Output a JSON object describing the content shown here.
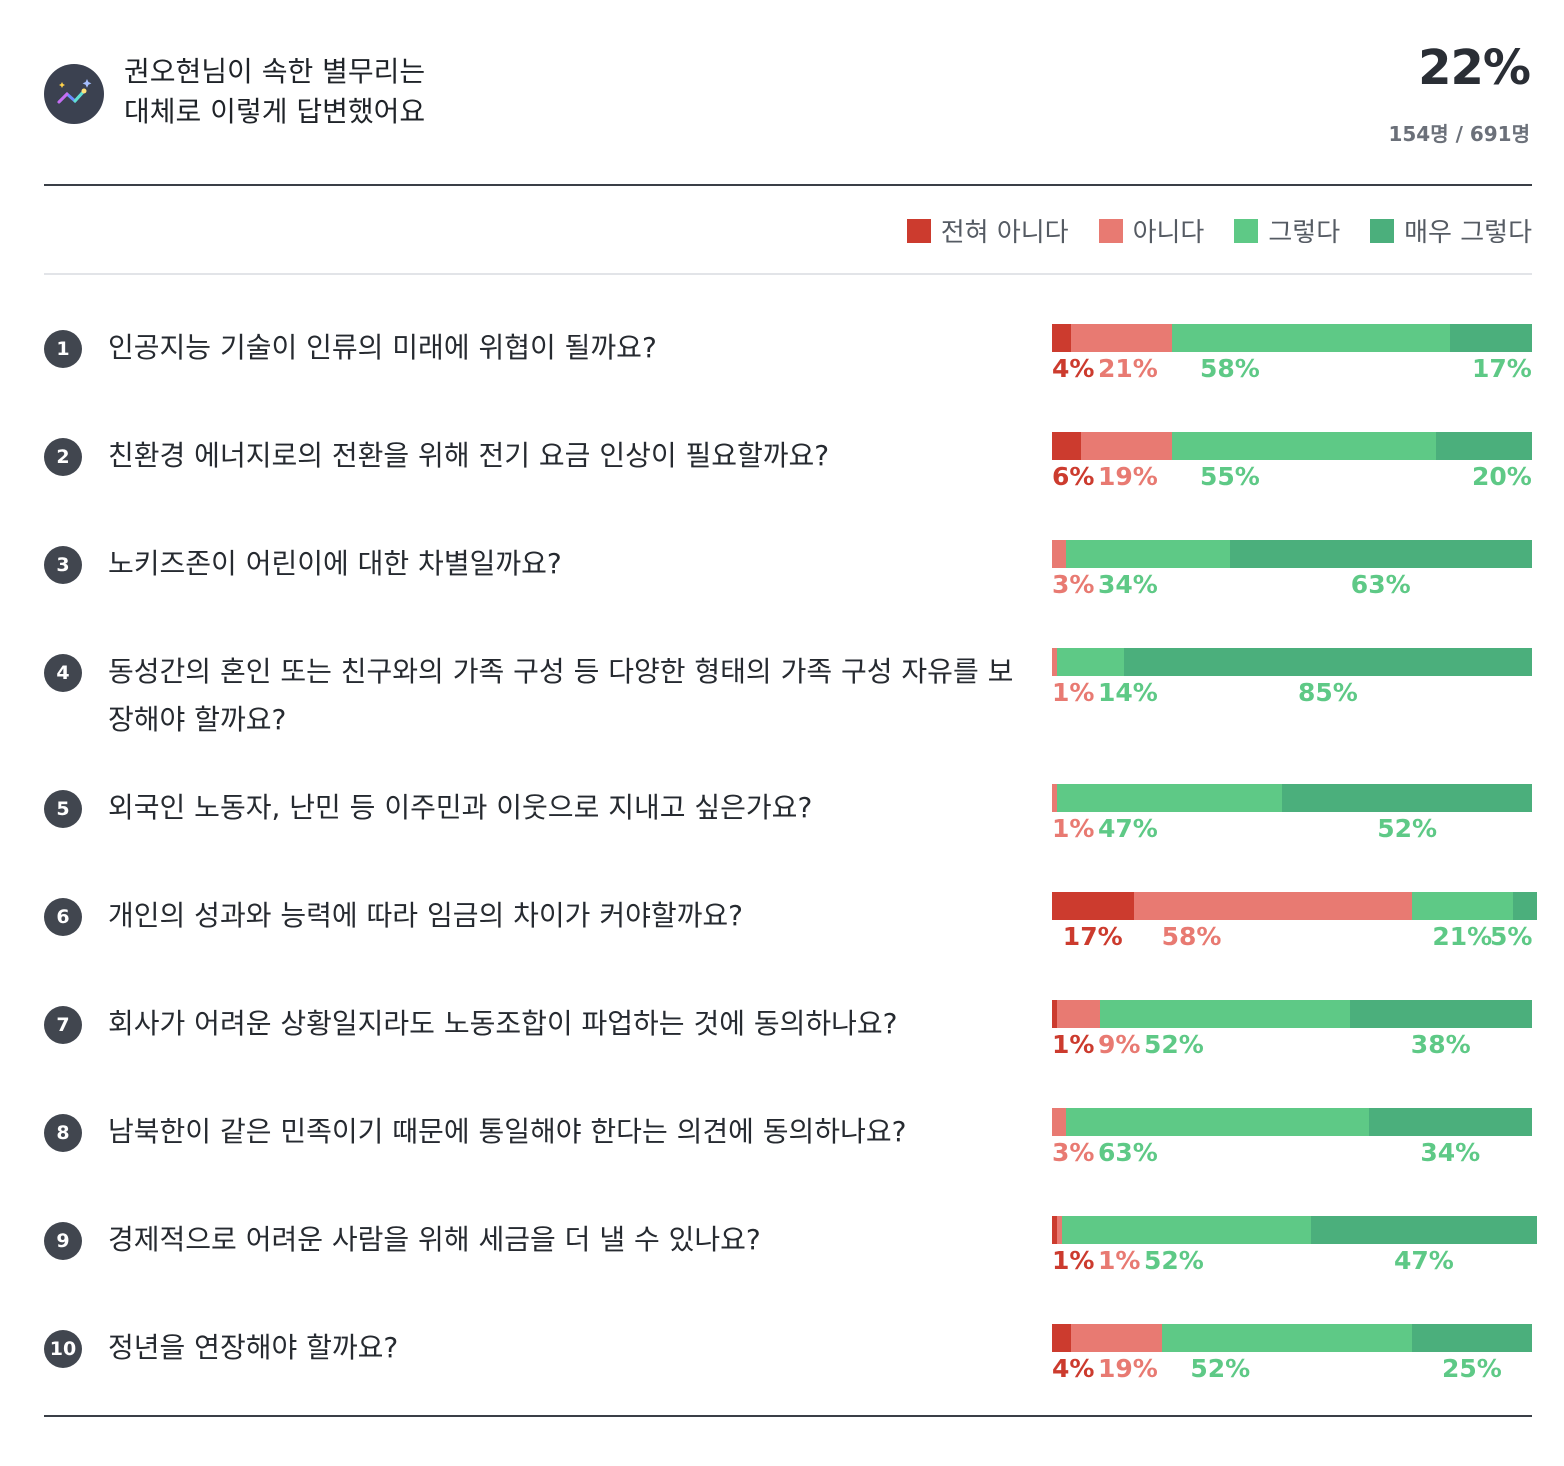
{
  "header": {
    "title_line1": "권오현님이 속한 별무리는",
    "title_line2": "대체로 이렇게 답변했어요",
    "percent": "22%",
    "count": "154명 / 691명"
  },
  "colors": {
    "strongly_disagree": "#cc3b2e",
    "disagree": "#e87a72",
    "agree": "#5ec986",
    "strongly_agree": "#4baf7c"
  },
  "legend": [
    "전혀 아니다",
    "아니다",
    "그렇다",
    "매우 그렇다"
  ],
  "chart_data": {
    "type": "bar",
    "orientation": "horizontal-stacked-100",
    "categories": [
      "1",
      "2",
      "3",
      "4",
      "5",
      "6",
      "7",
      "8",
      "9",
      "10"
    ],
    "series": [
      {
        "name": "전혀 아니다",
        "values": [
          4,
          6,
          0,
          0,
          0,
          17,
          1,
          0,
          1,
          4
        ]
      },
      {
        "name": "아니다",
        "values": [
          21,
          19,
          3,
          1,
          1,
          58,
          9,
          3,
          1,
          19
        ]
      },
      {
        "name": "그렇다",
        "values": [
          58,
          55,
          34,
          14,
          47,
          21,
          52,
          63,
          52,
          52
        ]
      },
      {
        "name": "매우 그렇다",
        "values": [
          17,
          20,
          63,
          85,
          52,
          5,
          38,
          34,
          47,
          25
        ]
      }
    ],
    "xlim": [
      0,
      100
    ],
    "legend_position": "top-right"
  },
  "questions": [
    {
      "num": "1",
      "text": "인공지능 기술이 인류의 미래에 위협이 될까요?"
    },
    {
      "num": "2",
      "text": "친환경 에너지로의 전환을 위해 전기 요금 인상이 필요할까요?"
    },
    {
      "num": "3",
      "text": "노키즈존이 어린이에 대한 차별일까요?"
    },
    {
      "num": "4",
      "text": "동성간의 혼인 또는 친구와의 가족 구성 등 다양한 형태의 가족 구성 자유를 보장해야 할까요?"
    },
    {
      "num": "5",
      "text": "외국인 노동자, 난민 등 이주민과 이웃으로 지내고 싶은가요?"
    },
    {
      "num": "6",
      "text": "개인의 성과와 능력에 따라 임금의 차이가 커야할까요?"
    },
    {
      "num": "7",
      "text": "회사가 어려운 상황일지라도 노동조합이 파업하는 것에 동의하나요?"
    },
    {
      "num": "8",
      "text": "남북한이 같은 민족이기 때문에 통일해야 한다는 의견에 동의하나요?"
    },
    {
      "num": "9",
      "text": "경제적으로 어려운 사람을 위해 세금을 더 낼 수 있나요?"
    },
    {
      "num": "10",
      "text": "정년을 연장해야 할까요?"
    }
  ]
}
